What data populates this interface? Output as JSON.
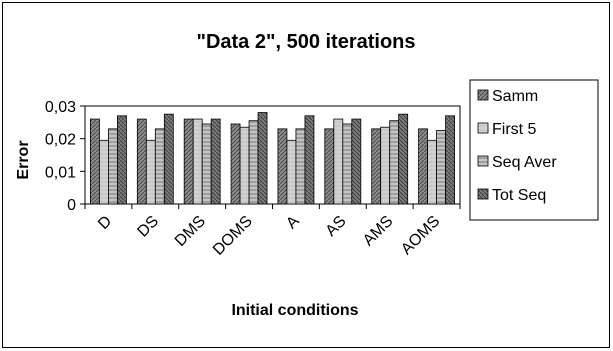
{
  "chart_data": {
    "type": "bar",
    "title": "\"Data 2\",  500 iterations",
    "xlabel": "Initial conditions",
    "ylabel": "Error",
    "categories": [
      "D",
      "DS",
      "DMS",
      "DOMS",
      "A",
      "AS",
      "AMS",
      "AOMS"
    ],
    "series": [
      {
        "name": "Samm",
        "values": [
          0.026,
          0.026,
          0.026,
          0.0245,
          0.023,
          0.023,
          0.023,
          0.023
        ],
        "color": "#7f7f7f"
      },
      {
        "name": "First 5",
        "values": [
          0.0195,
          0.0195,
          0.026,
          0.0235,
          0.0195,
          0.026,
          0.0235,
          0.0195
        ],
        "color": "#c8c8c8"
      },
      {
        "name": "Seq Aver",
        "values": [
          0.023,
          0.023,
          0.0245,
          0.0255,
          0.023,
          0.0245,
          0.0255,
          0.0225
        ],
        "color": "#b0b0b0"
      },
      {
        "name": "Tot Seq",
        "values": [
          0.027,
          0.0275,
          0.026,
          0.028,
          0.027,
          0.026,
          0.0275,
          0.027
        ],
        "color": "#6e6e6e"
      }
    ],
    "yticks": [
      "0",
      "0,01",
      "0,02",
      "0,03"
    ],
    "ylim": [
      0,
      0.03
    ],
    "grid": false,
    "legend_position": "right"
  }
}
